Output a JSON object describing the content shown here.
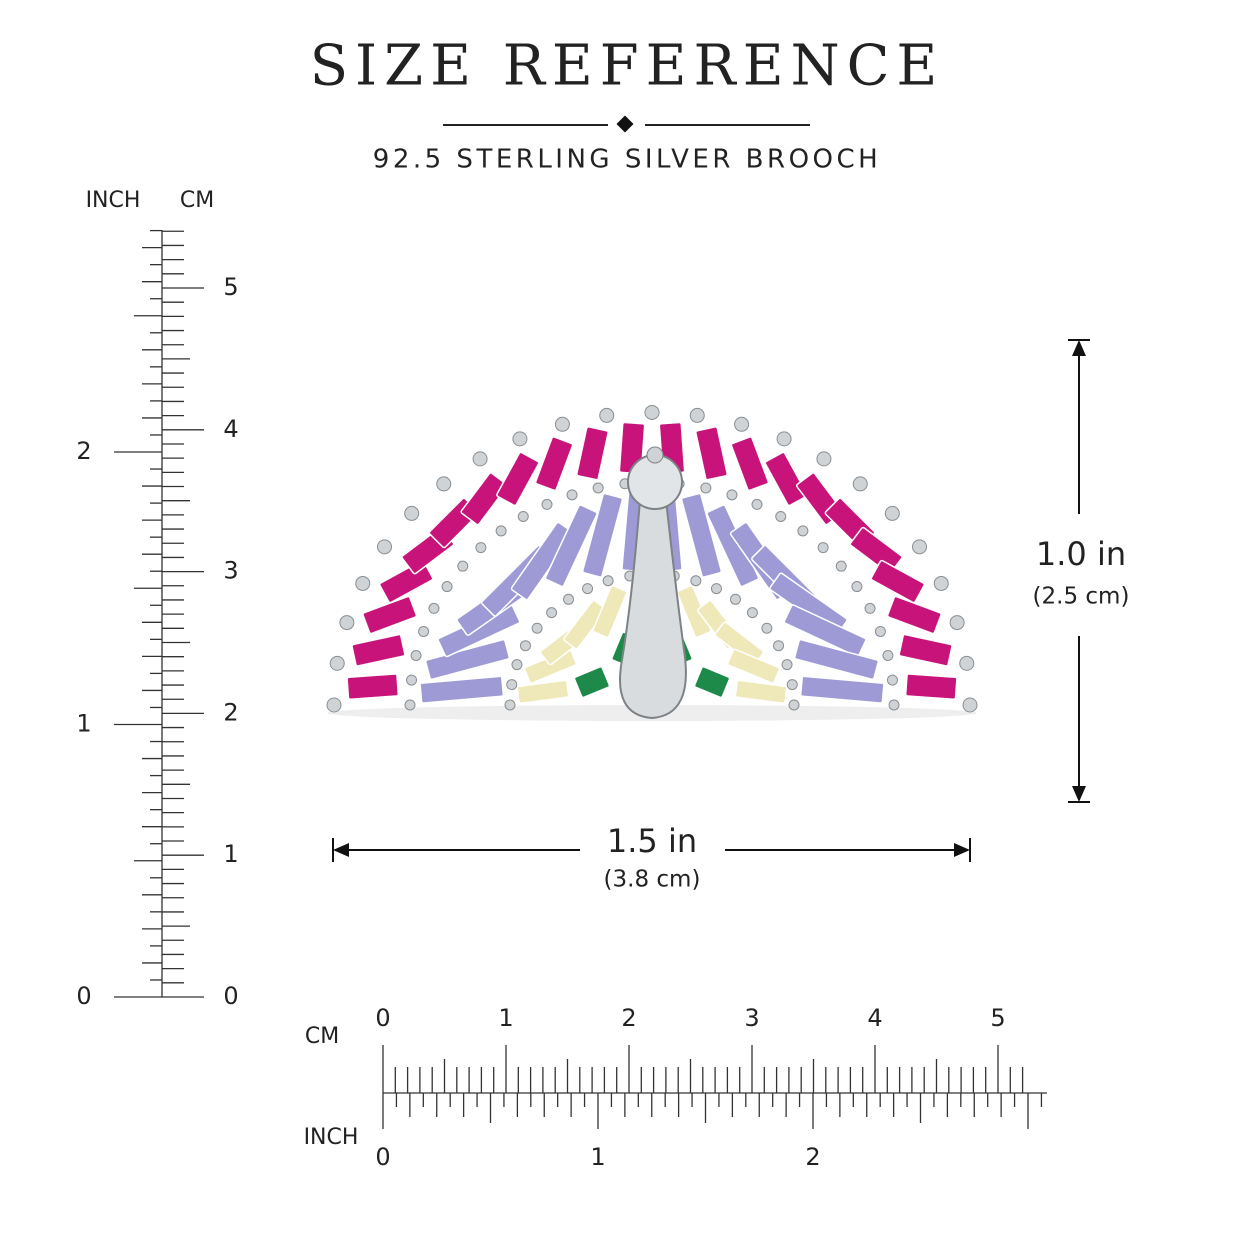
{
  "header": {
    "title": "SIZE REFERENCE",
    "subtitle": "92.5 STERLING SILVER BROOCH"
  },
  "vertical_ruler": {
    "left_unit": "INCH",
    "right_unit": "CM",
    "inch_labels": [
      "0",
      "1",
      "2"
    ],
    "cm_labels": [
      "0",
      "1",
      "2",
      "3",
      "4",
      "5"
    ]
  },
  "horizontal_ruler": {
    "top_unit": "CM",
    "bottom_unit": "INCH",
    "cm_labels": [
      "0",
      "1",
      "2",
      "3",
      "4",
      "5"
    ],
    "inch_labels": [
      "0",
      "1",
      "2"
    ]
  },
  "dimensions": {
    "height": {
      "primary": "1.0 in",
      "secondary": "(2.5 cm)"
    },
    "width": {
      "primary": "1.5 in",
      "secondary": "(3.8 cm)"
    }
  }
}
